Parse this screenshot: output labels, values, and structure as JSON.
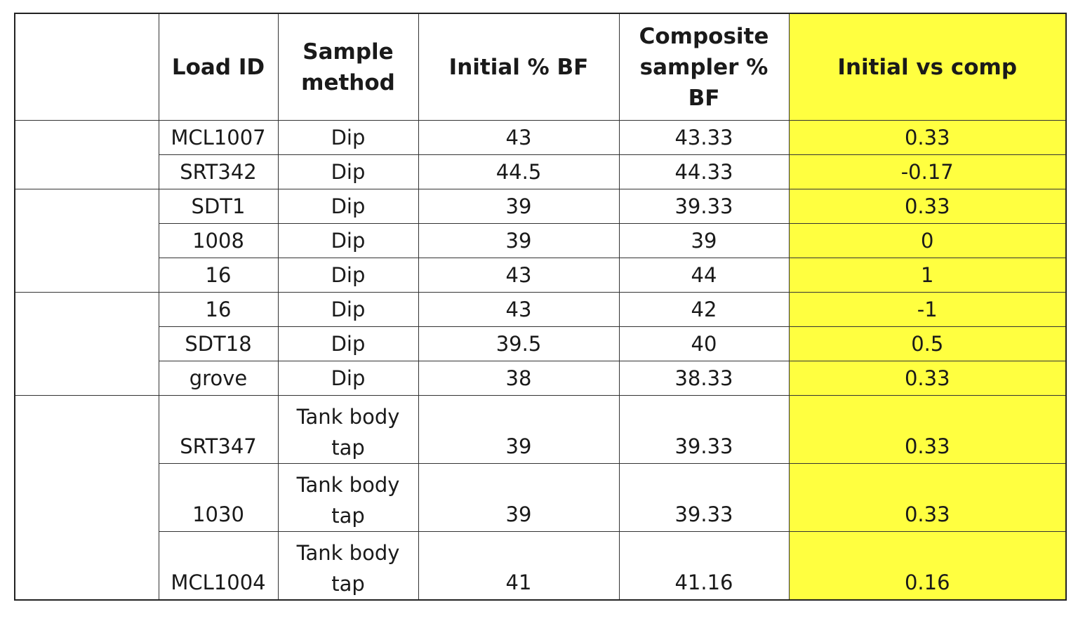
{
  "table": {
    "headers": {
      "group": "",
      "load_id": "Load ID",
      "sample_method_1": "Sample",
      "sample_method_2": "method",
      "initial_bf": "Initial % BF",
      "composite_1": "Composite",
      "composite_2": "sampler %",
      "composite_3": "BF",
      "initial_vs_comp": "Initial vs comp"
    },
    "rows": [
      {
        "load_id": "MCL1007",
        "method": "Dip",
        "method_2": "",
        "initial": "43",
        "composite": "43.33",
        "diff": "0.33"
      },
      {
        "load_id": "SRT342",
        "method": "Dip",
        "method_2": "",
        "initial": "44.5",
        "composite": "44.33",
        "diff": "-0.17"
      },
      {
        "load_id": "SDT1",
        "method": "Dip",
        "method_2": "",
        "initial": "39",
        "composite": "39.33",
        "diff": "0.33"
      },
      {
        "load_id": "1008",
        "method": "Dip",
        "method_2": "",
        "initial": "39",
        "composite": "39",
        "diff": "0"
      },
      {
        "load_id": "16",
        "method": "Dip",
        "method_2": "",
        "initial": "43",
        "composite": "44",
        "diff": "1"
      },
      {
        "load_id": "16",
        "method": "Dip",
        "method_2": "",
        "initial": "43",
        "composite": "42",
        "diff": "-1"
      },
      {
        "load_id": "SDT18",
        "method": "Dip",
        "method_2": "",
        "initial": "39.5",
        "composite": "40",
        "diff": "0.5"
      },
      {
        "load_id": "grove",
        "method": "Dip",
        "method_2": "",
        "initial": "38",
        "composite": "38.33",
        "diff": "0.33"
      },
      {
        "load_id": "SRT347",
        "method": "Tank body",
        "method_2": "tap",
        "initial": "39",
        "composite": "39.33",
        "diff": "0.33"
      },
      {
        "load_id": "1030",
        "method": "Tank body",
        "method_2": "tap",
        "initial": "39",
        "composite": "39.33",
        "diff": "0.33"
      },
      {
        "load_id": "MCL1004",
        "method": "Tank body",
        "method_2": "tap",
        "initial": "41",
        "composite": "41.16",
        "diff": "0.16"
      }
    ],
    "highlight_color": "#ffff40"
  }
}
